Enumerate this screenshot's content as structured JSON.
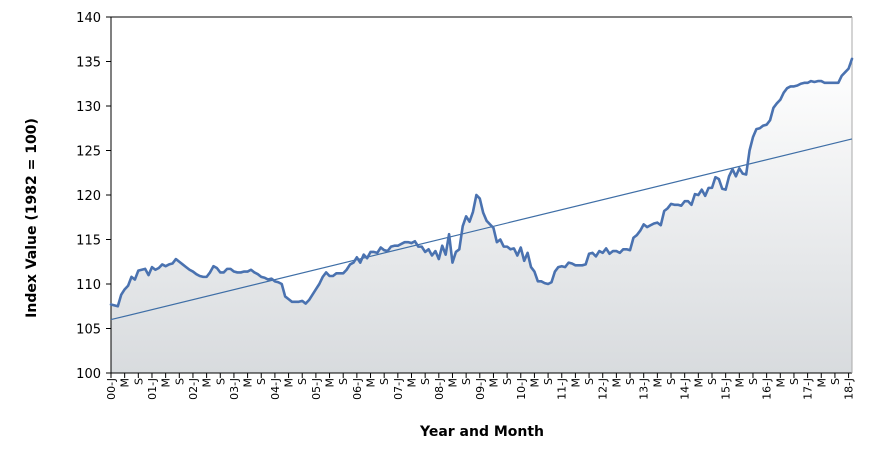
{
  "chart_data": {
    "type": "line",
    "xlabel": "Year and Month",
    "ylabel": "Index Value (1982 = 100)",
    "ylim": [
      100,
      140
    ],
    "yticks": [
      100,
      105,
      110,
      115,
      120,
      125,
      130,
      135,
      140
    ],
    "grid": false,
    "legend": "none",
    "x_tick_labels": [
      "00-J",
      "M",
      "S",
      "01-J",
      "M",
      "S",
      "02-J",
      "M",
      "S",
      "03-J",
      "M",
      "S",
      "04-J",
      "M",
      "S",
      "05-J",
      "M",
      "S",
      "06-J",
      "M",
      "S",
      "07-J",
      "M",
      "S",
      "08-J",
      "M",
      "S",
      "09-J",
      "M",
      "S",
      "10-J",
      "M",
      "S",
      "11-J",
      "M",
      "S",
      "12-J",
      "M",
      "S",
      "13-J",
      "M",
      "S",
      "14-J",
      "M",
      "S",
      "15-J",
      "M",
      "S",
      "16-J",
      "M",
      "S",
      "17-J",
      "M",
      "S",
      "18-J"
    ],
    "series": [
      {
        "type": "line",
        "x_unit": "months since Jan 2000",
        "points": [
          [
            0,
            107.7
          ],
          [
            1,
            107.6
          ],
          [
            2,
            107.5
          ],
          [
            3,
            108.8
          ],
          [
            4,
            109.4
          ],
          [
            5,
            109.8
          ],
          [
            6,
            110.8
          ],
          [
            7,
            110.5
          ],
          [
            8,
            111.5
          ],
          [
            9,
            111.6
          ],
          [
            10,
            111.7
          ],
          [
            11,
            111.0
          ],
          [
            12,
            111.9
          ],
          [
            13,
            111.6
          ],
          [
            14,
            111.8
          ],
          [
            15,
            112.2
          ],
          [
            16,
            112.0
          ],
          [
            17,
            112.2
          ],
          [
            18,
            112.3
          ],
          [
            19,
            112.8
          ],
          [
            20,
            112.5
          ],
          [
            21,
            112.2
          ],
          [
            22,
            111.9
          ],
          [
            23,
            111.6
          ],
          [
            24,
            111.4
          ],
          [
            25,
            111.1
          ],
          [
            26,
            110.9
          ],
          [
            27,
            110.8
          ],
          [
            28,
            110.8
          ],
          [
            29,
            111.3
          ],
          [
            30,
            112.0
          ],
          [
            31,
            111.8
          ],
          [
            32,
            111.3
          ],
          [
            33,
            111.3
          ],
          [
            34,
            111.7
          ],
          [
            35,
            111.7
          ],
          [
            36,
            111.4
          ],
          [
            37,
            111.3
          ],
          [
            38,
            111.3
          ],
          [
            39,
            111.4
          ],
          [
            40,
            111.4
          ],
          [
            41,
            111.6
          ],
          [
            42,
            111.3
          ],
          [
            43,
            111.1
          ],
          [
            44,
            110.8
          ],
          [
            45,
            110.7
          ],
          [
            46,
            110.5
          ],
          [
            47,
            110.6
          ],
          [
            48,
            110.3
          ],
          [
            49,
            110.2
          ],
          [
            50,
            110.0
          ],
          [
            51,
            108.6
          ],
          [
            52,
            108.3
          ],
          [
            53,
            108.0
          ],
          [
            54,
            108.0
          ],
          [
            55,
            108.0
          ],
          [
            56,
            108.1
          ],
          [
            57,
            107.8
          ],
          [
            58,
            108.2
          ],
          [
            59,
            108.8
          ],
          [
            60,
            109.4
          ],
          [
            61,
            110.0
          ],
          [
            62,
            110.8
          ],
          [
            63,
            111.3
          ],
          [
            64,
            110.9
          ],
          [
            65,
            110.9
          ],
          [
            66,
            111.2
          ],
          [
            67,
            111.2
          ],
          [
            68,
            111.2
          ],
          [
            69,
            111.6
          ],
          [
            70,
            112.2
          ],
          [
            71,
            112.4
          ],
          [
            72,
            113.0
          ],
          [
            73,
            112.4
          ],
          [
            74,
            113.3
          ],
          [
            75,
            112.9
          ],
          [
            76,
            113.6
          ],
          [
            77,
            113.6
          ],
          [
            78,
            113.5
          ],
          [
            79,
            114.1
          ],
          [
            80,
            113.8
          ],
          [
            81,
            113.7
          ],
          [
            82,
            114.2
          ],
          [
            83,
            114.3
          ],
          [
            84,
            114.3
          ],
          [
            85,
            114.5
          ],
          [
            86,
            114.7
          ],
          [
            87,
            114.7
          ],
          [
            88,
            114.6
          ],
          [
            89,
            114.8
          ],
          [
            90,
            114.2
          ],
          [
            91,
            114.2
          ],
          [
            92,
            113.6
          ],
          [
            93,
            113.9
          ],
          [
            94,
            113.2
          ],
          [
            95,
            113.7
          ],
          [
            96,
            112.8
          ],
          [
            97,
            114.3
          ],
          [
            98,
            113.3
          ],
          [
            99,
            115.6
          ],
          [
            100,
            112.4
          ],
          [
            101,
            113.6
          ],
          [
            102,
            113.9
          ],
          [
            103,
            116.5
          ],
          [
            104,
            117.6
          ],
          [
            105,
            117.0
          ],
          [
            106,
            118.1
          ],
          [
            107,
            120.0
          ],
          [
            108,
            119.6
          ],
          [
            109,
            118.0
          ],
          [
            110,
            117.1
          ],
          [
            111,
            116.7
          ],
          [
            112,
            116.3
          ],
          [
            113,
            114.7
          ],
          [
            114,
            115.0
          ],
          [
            115,
            114.2
          ],
          [
            116,
            114.2
          ],
          [
            117,
            113.9
          ],
          [
            118,
            114.0
          ],
          [
            119,
            113.2
          ],
          [
            120,
            114.1
          ],
          [
            121,
            112.6
          ],
          [
            122,
            113.5
          ],
          [
            123,
            111.9
          ],
          [
            124,
            111.4
          ],
          [
            125,
            110.3
          ],
          [
            126,
            110.3
          ],
          [
            127,
            110.1
          ],
          [
            128,
            110.0
          ],
          [
            129,
            110.2
          ],
          [
            130,
            111.4
          ],
          [
            131,
            111.9
          ],
          [
            132,
            112.0
          ],
          [
            133,
            111.9
          ],
          [
            134,
            112.4
          ],
          [
            135,
            112.3
          ],
          [
            136,
            112.1
          ],
          [
            137,
            112.1
          ],
          [
            138,
            112.1
          ],
          [
            139,
            112.2
          ],
          [
            140,
            113.4
          ],
          [
            141,
            113.5
          ],
          [
            142,
            113.1
          ],
          [
            143,
            113.7
          ],
          [
            144,
            113.5
          ],
          [
            145,
            114.0
          ],
          [
            146,
            113.4
          ],
          [
            147,
            113.7
          ],
          [
            148,
            113.7
          ],
          [
            149,
            113.5
          ],
          [
            150,
            113.9
          ],
          [
            151,
            113.9
          ],
          [
            152,
            113.8
          ],
          [
            153,
            115.2
          ],
          [
            154,
            115.5
          ],
          [
            155,
            116.0
          ],
          [
            156,
            116.7
          ],
          [
            157,
            116.4
          ],
          [
            158,
            116.6
          ],
          [
            159,
            116.8
          ],
          [
            160,
            116.9
          ],
          [
            161,
            116.6
          ],
          [
            162,
            118.2
          ],
          [
            163,
            118.5
          ],
          [
            164,
            119.0
          ],
          [
            165,
            118.9
          ],
          [
            166,
            118.9
          ],
          [
            167,
            118.8
          ],
          [
            168,
            119.3
          ],
          [
            169,
            119.3
          ],
          [
            170,
            118.9
          ],
          [
            171,
            120.1
          ],
          [
            172,
            120.0
          ],
          [
            173,
            120.6
          ],
          [
            174,
            119.9
          ],
          [
            175,
            120.8
          ],
          [
            176,
            120.8
          ],
          [
            177,
            122.0
          ],
          [
            178,
            121.8
          ],
          [
            179,
            120.7
          ],
          [
            180,
            120.6
          ],
          [
            181,
            122.1
          ],
          [
            182,
            122.9
          ],
          [
            183,
            122.1
          ],
          [
            184,
            123.0
          ],
          [
            185,
            122.4
          ],
          [
            186,
            122.3
          ],
          [
            187,
            125.0
          ],
          [
            188,
            126.5
          ],
          [
            189,
            127.4
          ],
          [
            190,
            127.5
          ],
          [
            191,
            127.8
          ],
          [
            192,
            127.9
          ],
          [
            193,
            128.4
          ],
          [
            194,
            129.8
          ],
          [
            195,
            130.3
          ],
          [
            196,
            130.7
          ],
          [
            197,
            131.5
          ],
          [
            198,
            132.0
          ],
          [
            199,
            132.2
          ],
          [
            200,
            132.2
          ],
          [
            201,
            132.3
          ],
          [
            202,
            132.5
          ],
          [
            203,
            132.6
          ],
          [
            204,
            132.6
          ],
          [
            205,
            132.8
          ],
          [
            206,
            132.7
          ],
          [
            207,
            132.8
          ],
          [
            208,
            132.8
          ],
          [
            209,
            132.6
          ],
          [
            210,
            132.6
          ],
          [
            211,
            132.6
          ],
          [
            212,
            132.6
          ],
          [
            213,
            132.6
          ],
          [
            214,
            133.4
          ],
          [
            215,
            133.8
          ],
          [
            216,
            134.2
          ],
          [
            217,
            135.3
          ]
        ]
      },
      {
        "type": "linear-trend",
        "points": [
          [
            0,
            106.0
          ],
          [
            217,
            126.3
          ]
        ]
      }
    ],
    "colors": {
      "line": "#4A72B0",
      "trend": "#3E6EA6",
      "fill_top": "#ffffff",
      "fill_bottom": "#d8dbde",
      "axis": "#000000"
    }
  }
}
